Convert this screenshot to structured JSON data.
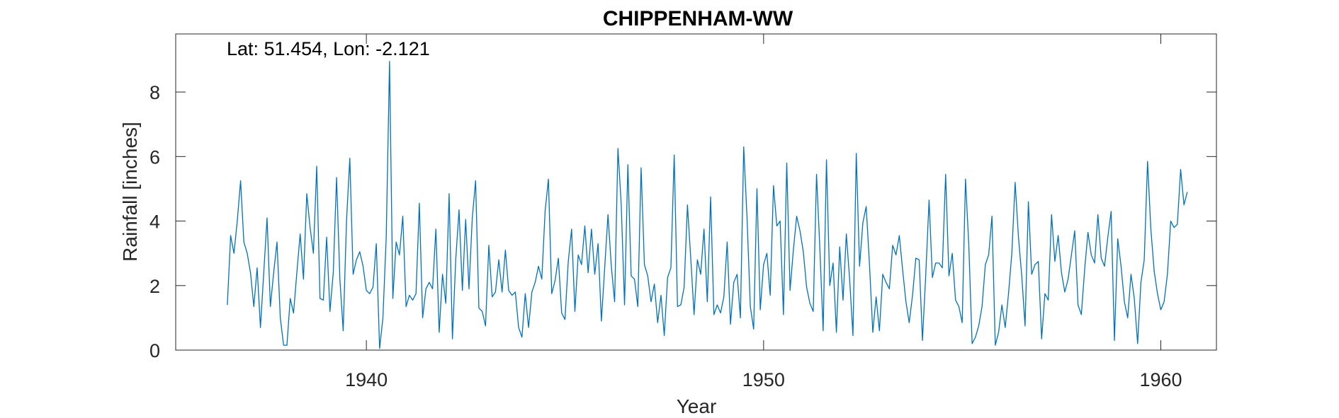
{
  "chart_data": {
    "type": "line",
    "title": "CHIPPENHAM-WW",
    "annotation": "Lat: 51.454, Lon: -2.121",
    "xlabel": "Year",
    "ylabel": "Rainfall [inches]",
    "xlim": [
      1935.2,
      1961.4
    ],
    "ylim": [
      0,
      9.8
    ],
    "xticks": [
      1940,
      1950,
      1960
    ],
    "yticks": [
      0,
      2,
      4,
      6,
      8
    ],
    "grid": false,
    "line_color": "#0072BD",
    "series": [
      {
        "x_start": 1936.5,
        "x_step": 0.08333,
        "values": [
          1.4,
          3.55,
          3.0,
          4.0,
          5.25,
          3.35,
          3.0,
          2.4,
          1.35,
          2.55,
          0.7,
          2.4,
          4.1,
          1.35,
          2.4,
          3.35,
          1.0,
          0.15,
          0.15,
          1.6,
          1.15,
          2.4,
          3.6,
          2.2,
          4.85,
          3.8,
          3.0,
          5.7,
          1.6,
          1.55,
          3.5,
          1.2,
          2.4,
          5.35,
          2.2,
          0.6,
          4.0,
          5.95,
          2.35,
          2.8,
          3.05,
          2.6,
          1.85,
          1.75,
          1.95,
          3.3,
          0.05,
          1.0,
          3.5,
          8.95,
          1.6,
          3.35,
          2.95,
          4.15,
          1.35,
          1.7,
          1.55,
          1.75,
          4.55,
          1.0,
          1.9,
          2.1,
          1.9,
          3.75,
          0.55,
          2.35,
          1.45,
          4.85,
          0.35,
          2.8,
          4.35,
          1.85,
          4.05,
          1.9,
          4.1,
          5.25,
          1.3,
          1.2,
          0.75,
          3.25,
          1.65,
          1.8,
          2.8,
          1.8,
          3.1,
          1.85,
          1.7,
          1.8,
          0.7,
          0.4,
          1.75,
          0.7,
          1.8,
          2.1,
          2.6,
          2.2,
          4.3,
          5.3,
          1.75,
          2.15,
          2.85,
          1.15,
          0.95,
          2.75,
          3.75,
          1.2,
          2.95,
          2.65,
          3.85,
          2.4,
          3.75,
          2.35,
          3.3,
          0.9,
          2.55,
          4.2,
          2.6,
          1.5,
          6.25,
          4.5,
          1.4,
          5.75,
          2.3,
          2.2,
          1.35,
          5.65,
          2.65,
          2.3,
          1.5,
          2.05,
          0.85,
          1.7,
          0.45,
          2.25,
          2.55,
          6.05,
          1.35,
          1.4,
          1.95,
          4.5,
          2.85,
          1.1,
          2.8,
          2.35,
          3.75,
          1.5,
          4.75,
          1.1,
          1.4,
          1.15,
          1.65,
          3.35,
          0.8,
          2.1,
          2.35,
          1.0,
          6.3,
          4.1,
          1.35,
          0.65,
          5.0,
          1.25,
          2.65,
          3.0,
          1.7,
          5.1,
          3.85,
          4.0,
          1.1,
          5.8,
          1.85,
          3.1,
          4.15,
          3.7,
          3.05,
          1.95,
          1.45,
          1.2,
          5.45,
          3.15,
          0.6,
          5.9,
          2.0,
          2.7,
          0.55,
          3.2,
          1.55,
          3.6,
          2.2,
          0.45,
          6.1,
          2.6,
          3.95,
          4.45,
          2.65,
          0.55,
          1.65,
          0.6,
          2.35,
          2.1,
          1.9,
          3.25,
          2.95,
          3.55,
          2.5,
          1.5,
          0.85,
          1.7,
          2.85,
          2.8,
          0.3,
          2.35,
          4.65,
          2.25,
          2.7,
          2.7,
          2.55,
          5.45,
          2.3,
          3.0,
          1.55,
          1.35,
          0.85,
          5.3,
          3.25,
          0.2,
          0.4,
          0.75,
          1.35,
          2.65,
          2.95,
          4.15,
          0.15,
          0.55,
          1.4,
          0.7,
          1.75,
          3.0,
          5.2,
          3.5,
          2.3,
          0.75,
          4.6,
          2.35,
          2.65,
          2.75,
          0.35,
          1.75,
          1.55,
          4.2,
          2.75,
          3.55,
          2.4,
          1.8,
          2.2,
          2.95,
          3.7,
          1.4,
          1.1,
          2.5,
          3.65,
          2.95,
          2.7,
          4.2,
          2.85,
          2.6,
          3.5,
          4.3,
          0.3,
          3.45,
          2.6,
          1.5,
          1.0,
          2.35,
          1.6,
          0.2,
          2.1,
          2.8,
          5.85,
          3.75,
          2.45,
          1.75,
          1.25,
          1.5,
          2.35,
          4.0,
          3.8,
          3.9,
          5.6,
          4.5,
          4.9
        ]
      }
    ]
  }
}
